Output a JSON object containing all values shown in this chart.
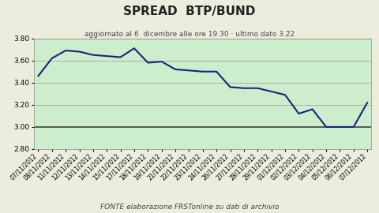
{
  "title": "SPREAD  BTP/BUND",
  "subtitle": "aggiornato al 6  dicembre alle ore 19.30 · ultimo dato 3.22",
  "footer": "FONTE elaborazione FRSTonline su dati di archivio",
  "xlabels": [
    "07/11/2012",
    "08/11/2012",
    "11/11/2012",
    "12/11/2012",
    "13/11/2012",
    "14/11/2012",
    "15/11/2012",
    "17/11/2012",
    "18/11/2012",
    "19/11/2012",
    "21/11/2012",
    "22/11/2012",
    "23/11/2012",
    "24/11/2012",
    "26/11/2012",
    "27/11/2012",
    "28/11/2012",
    "29/11/2012",
    "01/12/2012",
    "02/12/2012",
    "03/12/2012",
    "04/12/2012",
    "05/12/2012",
    "06/12/2012",
    "07/12/2012"
  ],
  "values": [
    3.46,
    3.62,
    3.69,
    3.68,
    3.65,
    3.64,
    3.63,
    3.71,
    3.58,
    3.59,
    3.52,
    3.51,
    3.5,
    3.5,
    3.36,
    3.35,
    3.35,
    3.32,
    3.29,
    3.12,
    3.16,
    3.0,
    3.0,
    3.0,
    3.22
  ],
  "ylim": [
    2.8,
    3.8
  ],
  "yticks": [
    2.8,
    3.0,
    3.2,
    3.4,
    3.6,
    3.8
  ],
  "line_color": "#1a237e",
  "line_width": 1.5,
  "bg_outer": "#ededdd",
  "bg_inner": "#cceecc",
  "grid_color": "#aaaaaa",
  "title_fontsize": 11,
  "subtitle_fontsize": 6.5,
  "footer_fontsize": 6.5,
  "tick_fontsize": 5.5,
  "ytick_fontsize": 6.5
}
